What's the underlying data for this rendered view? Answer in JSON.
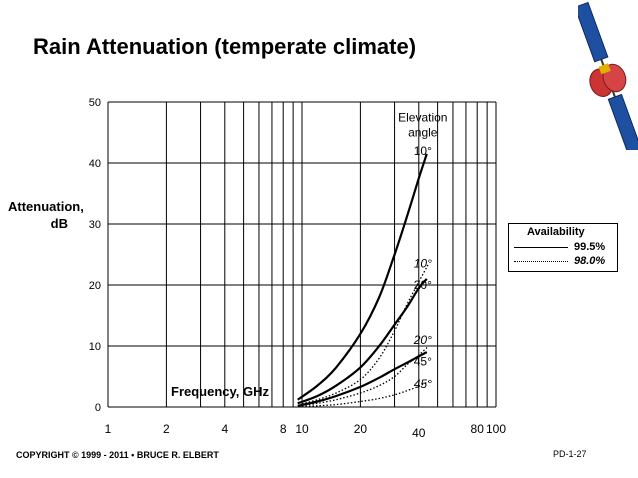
{
  "title": "Rain Attenuation (temperate climate)",
  "footer": {
    "copyright": "COPYRIGHT © 1999 - 2011 • BRUCE R. ELBERT",
    "page_code": "PD-1-27"
  },
  "colors": {
    "line": "#000000",
    "satellite_body": "#cc3333",
    "satellite_panel": "#1f4fa0"
  },
  "chart_data": {
    "type": "line",
    "title": "Rain Attenuation (temperate climate)",
    "xlabel": "Frequency, GHz",
    "ylabel": "Attenuation, dB",
    "xscale": "log",
    "xlim": [
      1,
      100
    ],
    "ylim": [
      0,
      50
    ],
    "x_ticks": [
      1,
      2,
      4,
      8,
      10,
      20,
      40,
      80,
      100
    ],
    "x_tick_labels": [
      "1",
      "2",
      "4",
      "8",
      "10",
      "20",
      "40",
      "80",
      "100"
    ],
    "y_ticks": [
      0,
      10,
      20,
      30,
      40,
      50
    ],
    "y_tick_labels": [
      "0",
      "10",
      "20",
      "30",
      "40",
      "50"
    ],
    "grid_x": [
      1,
      2,
      3,
      4,
      5,
      6,
      7,
      8,
      9,
      10,
      20,
      30,
      40,
      50,
      60,
      70,
      80,
      90,
      100
    ],
    "grid_y": [
      10,
      20,
      30,
      40,
      50
    ],
    "legend": {
      "title": "Availability",
      "entries": [
        {
          "label": "99.5%",
          "style": "solid"
        },
        {
          "label": "98.0%",
          "style": "dotted"
        }
      ]
    },
    "annotations": [
      {
        "text": "Elevation",
        "x": 40,
        "y": 47.5
      },
      {
        "text": "angle",
        "x": 40,
        "y": 45
      },
      {
        "text": "10°",
        "x": 40,
        "y": 42
      },
      {
        "text": "10°",
        "x": 40,
        "y": 23.5,
        "italic": true
      },
      {
        "text": "20°",
        "x": 40,
        "y": 20
      },
      {
        "text": "20°",
        "x": 40,
        "y": 11,
        "italic": true
      },
      {
        "text": "45°",
        "x": 40,
        "y": 7.5
      },
      {
        "text": "45°",
        "x": 40,
        "y": 3.8,
        "italic": true
      }
    ],
    "series": [
      {
        "name": "10° 99.5%",
        "style": "solid",
        "x": [
          9.5,
          12,
          15,
          20,
          25,
          30,
          35,
          40,
          44
        ],
        "y": [
          1.2,
          3.5,
          6.5,
          12,
          18,
          25,
          31.5,
          37.5,
          41.5
        ]
      },
      {
        "name": "20° 99.5%",
        "style": "solid",
        "x": [
          9.5,
          12,
          15,
          20,
          25,
          30,
          35,
          40,
          44
        ],
        "y": [
          0.6,
          1.8,
          3.5,
          6.5,
          10,
          13.5,
          16.5,
          19.5,
          21
        ]
      },
      {
        "name": "45° 99.5%",
        "style": "solid",
        "x": [
          9.5,
          12,
          15,
          20,
          25,
          30,
          35,
          40,
          44
        ],
        "y": [
          0.2,
          0.9,
          1.8,
          3.3,
          4.8,
          6.2,
          7.3,
          8.3,
          9
        ]
      },
      {
        "name": "10° 98.0%",
        "style": "dotted",
        "x": [
          10,
          12,
          15,
          20,
          25,
          30,
          35,
          40,
          45
        ],
        "y": [
          0.5,
          1.2,
          2.3,
          4.5,
          8,
          12.5,
          17,
          20.5,
          23.5
        ]
      },
      {
        "name": "20° 98.0%",
        "style": "dotted",
        "x": [
          10,
          12,
          15,
          20,
          25,
          30,
          35,
          40,
          45
        ],
        "y": [
          0.2,
          0.6,
          1.2,
          2.3,
          3.5,
          5,
          7,
          8.5,
          10
        ]
      },
      {
        "name": "45° 98.0%",
        "style": "dotted",
        "x": [
          10,
          12,
          15,
          20,
          25,
          30,
          35,
          40,
          45
        ],
        "y": [
          0.05,
          0.2,
          0.4,
          0.9,
          1.4,
          2,
          2.7,
          3.4,
          4.2
        ]
      }
    ]
  }
}
